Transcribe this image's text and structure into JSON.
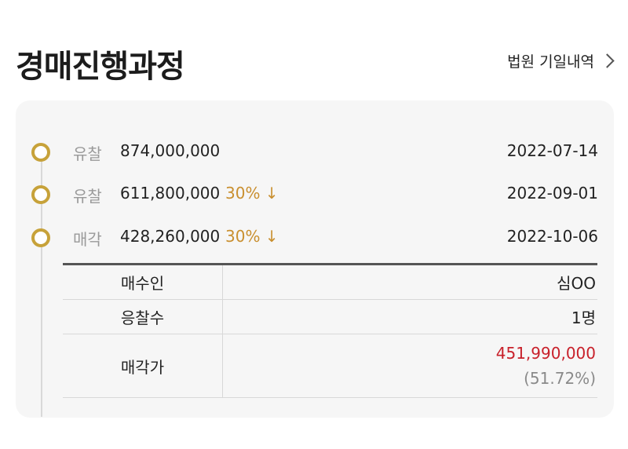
{
  "header": {
    "title": "경매진행과정",
    "court_link_label": "법원 기일내역"
  },
  "timeline": [
    {
      "status": "유찰",
      "amount": "874,000,000",
      "rate": "",
      "date": "2022-07-14"
    },
    {
      "status": "유찰",
      "amount": "611,800,000",
      "rate": "30% ↓",
      "date": "2022-09-01"
    },
    {
      "status": "매각",
      "amount": "428,260,000",
      "rate": "30% ↓",
      "date": "2022-10-06"
    }
  ],
  "result": {
    "buyer_label": "매수인",
    "buyer_value": "심OO",
    "bidders_label": "응찰수",
    "bidders_value": "1명",
    "price_label": "매각가",
    "price_value": "451,990,000",
    "price_ratio": "(51.72%)"
  },
  "colors": {
    "dot": "#c7a23a",
    "rate": "#c98f2f",
    "price": "#c8202a"
  }
}
